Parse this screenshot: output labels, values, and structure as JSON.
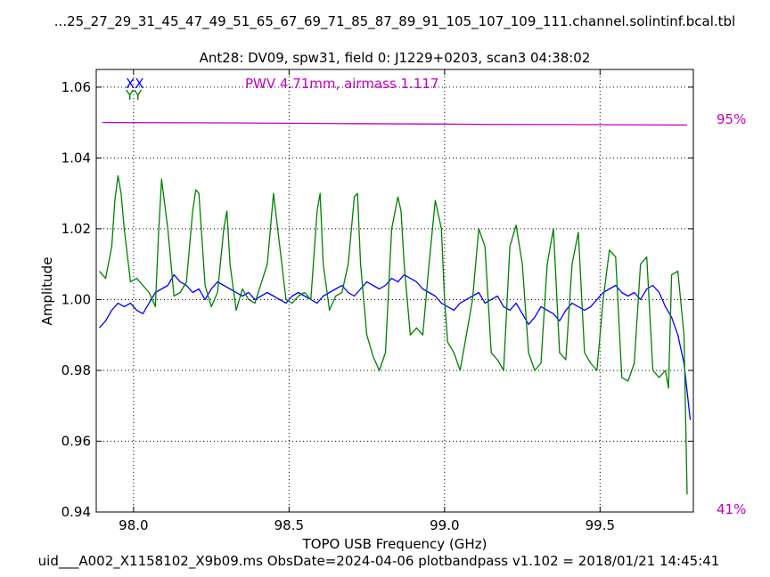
{
  "chart_data": {
    "type": "line",
    "title": "...25_27_29_31_45_47_49_51_65_67_69_71_85_87_89_91_105_107_109_111.channel.solintinf.bcal.tbl",
    "subtitle": "Ant28: DV09,  spw31,  field 0: J1229+0203,  scan3  04:38:02",
    "xlabel": "TOPO USB Frequency (GHz)",
    "ylabel": "Amplitude",
    "footer": "uid___A002_X1158102_X9b09.ms  ObsDate=2024-04-06   plotbandpass v1.102 = 2018/01/21 14:45:41",
    "annotation": "PWV 4.71mm, airmass 1.117",
    "xlim": [
      97.88,
      99.8
    ],
    "ylim": [
      0.94,
      1.065
    ],
    "xticks": [
      98.0,
      98.5,
      99.0,
      99.5
    ],
    "xtick_labels": [
      "98.0",
      "98.5",
      "99.0",
      "99.5"
    ],
    "yticks": [
      0.94,
      0.96,
      0.98,
      1.0,
      1.02,
      1.04,
      1.06
    ],
    "ytick_labels": [
      "0.94",
      "0.96",
      "0.98",
      "1.00",
      "1.02",
      "1.04",
      "1.06"
    ],
    "grid": true,
    "legend_placement": "top-left",
    "right_axis_labels": {
      "top": "95%",
      "bottom": "41%"
    },
    "colors": {
      "XX": "#0000ff",
      "YY": "#008000",
      "atm": "#bf00bf"
    },
    "series": [
      {
        "name": "XX",
        "color": "#0000ff",
        "x": [
          97.89,
          97.91,
          97.93,
          97.95,
          97.97,
          97.99,
          98.01,
          98.03,
          98.05,
          98.07,
          98.09,
          98.11,
          98.13,
          98.15,
          98.17,
          98.19,
          98.21,
          98.23,
          98.25,
          98.27,
          98.29,
          98.31,
          98.33,
          98.35,
          98.37,
          98.39,
          98.41,
          98.43,
          98.45,
          98.47,
          98.49,
          98.51,
          98.53,
          98.55,
          98.57,
          98.59,
          98.61,
          98.63,
          98.65,
          98.67,
          98.69,
          98.71,
          98.73,
          98.75,
          98.77,
          98.79,
          98.81,
          98.83,
          98.85,
          98.87,
          98.89,
          98.91,
          98.93,
          98.95,
          98.97,
          98.99,
          99.01,
          99.03,
          99.05,
          99.07,
          99.09,
          99.11,
          99.13,
          99.15,
          99.17,
          99.19,
          99.21,
          99.23,
          99.25,
          99.27,
          99.29,
          99.31,
          99.33,
          99.35,
          99.37,
          99.39,
          99.41,
          99.43,
          99.45,
          99.47,
          99.49,
          99.51,
          99.53,
          99.55,
          99.57,
          99.59,
          99.61,
          99.63,
          99.65,
          99.67,
          99.69,
          99.71,
          99.73,
          99.75,
          99.77,
          99.79
        ],
        "y": [
          0.992,
          0.994,
          0.997,
          0.999,
          0.998,
          0.999,
          0.997,
          0.996,
          0.999,
          1.002,
          1.003,
          1.004,
          1.007,
          1.005,
          1.004,
          1.002,
          1.003,
          1.0,
          1.003,
          1.005,
          1.004,
          1.003,
          1.002,
          1.001,
          1.002,
          1.0,
          1.001,
          1.002,
          1.001,
          1.0,
          0.999,
          1.001,
          1.002,
          1.001,
          1.0,
          0.999,
          1.001,
          1.002,
          1.003,
          1.004,
          1.002,
          1.001,
          1.003,
          1.005,
          1.004,
          1.003,
          1.004,
          1.006,
          1.005,
          1.007,
          1.006,
          1.005,
          1.003,
          1.002,
          1.001,
          0.999,
          0.998,
          0.997,
          0.999,
          1.0,
          1.001,
          1.002,
          0.999,
          1.0,
          1.001,
          0.998,
          0.997,
          0.999,
          0.996,
          0.993,
          0.995,
          0.998,
          0.997,
          0.996,
          0.994,
          0.997,
          0.999,
          0.998,
          0.997,
          0.998,
          1.0,
          1.002,
          1.003,
          1.004,
          1.002,
          1.001,
          1.002,
          1.0,
          1.003,
          1.004,
          1.002,
          0.998,
          0.995,
          0.99,
          0.982,
          0.966
        ]
      },
      {
        "name": "YY",
        "color": "#008000",
        "x": [
          97.89,
          97.91,
          97.93,
          97.94,
          97.95,
          97.96,
          97.97,
          97.99,
          98.01,
          98.03,
          98.05,
          98.07,
          98.08,
          98.09,
          98.11,
          98.13,
          98.15,
          98.17,
          98.19,
          98.2,
          98.21,
          98.23,
          98.25,
          98.27,
          98.29,
          98.3,
          98.31,
          98.33,
          98.35,
          98.37,
          98.39,
          98.43,
          98.45,
          98.47,
          98.49,
          98.51,
          98.53,
          98.55,
          98.57,
          98.59,
          98.6,
          98.61,
          98.63,
          98.65,
          98.67,
          98.69,
          98.71,
          98.72,
          98.73,
          98.75,
          98.77,
          98.79,
          98.81,
          98.83,
          98.85,
          98.86,
          98.87,
          98.89,
          98.91,
          98.93,
          98.95,
          98.97,
          98.99,
          99.0,
          99.01,
          99.03,
          99.05,
          99.07,
          99.09,
          99.11,
          99.13,
          99.15,
          99.17,
          99.19,
          99.21,
          99.23,
          99.25,
          99.27,
          99.29,
          99.31,
          99.33,
          99.35,
          99.37,
          99.39,
          99.41,
          99.43,
          99.45,
          99.47,
          99.49,
          99.51,
          99.53,
          99.55,
          99.57,
          99.59,
          99.61,
          99.63,
          99.65,
          99.67,
          99.69,
          99.71,
          99.72,
          99.73,
          99.75,
          99.77,
          99.78
        ],
        "y": [
          1.008,
          1.006,
          1.015,
          1.028,
          1.035,
          1.03,
          1.02,
          1.005,
          1.006,
          1.004,
          1.002,
          0.998,
          1.018,
          1.034,
          1.02,
          1.001,
          1.002,
          1.005,
          1.025,
          1.031,
          1.03,
          1.004,
          0.998,
          1.002,
          1.02,
          1.025,
          1.01,
          0.997,
          1.003,
          1.0,
          0.999,
          1.01,
          1.03,
          1.015,
          1.0,
          0.999,
          1.001,
          1.002,
          1.0,
          1.025,
          1.03,
          1.01,
          0.997,
          1.001,
          1.002,
          1.01,
          1.029,
          1.03,
          1.01,
          0.99,
          0.984,
          0.98,
          0.985,
          1.02,
          1.029,
          1.025,
          1.01,
          0.99,
          0.992,
          0.99,
          1.01,
          1.028,
          1.02,
          1.0,
          0.988,
          0.985,
          0.98,
          0.99,
          1.0,
          1.02,
          1.015,
          0.985,
          0.983,
          0.98,
          1.015,
          1.021,
          1.01,
          0.985,
          0.98,
          0.982,
          1.01,
          1.02,
          0.985,
          0.983,
          1.01,
          1.019,
          0.985,
          0.982,
          0.98,
          1.0,
          1.014,
          1.012,
          0.978,
          0.977,
          0.982,
          1.01,
          1.012,
          0.98,
          0.978,
          0.98,
          0.975,
          1.007,
          1.008,
          0.99,
          0.945
        ]
      },
      {
        "name": "",
        "color": "#bf00bf",
        "x": [
          97.9,
          98.3,
          98.7,
          99.1,
          99.5,
          99.78
        ],
        "y": [
          1.05,
          1.0499,
          1.0497,
          1.0495,
          1.0494,
          1.0493
        ]
      }
    ]
  }
}
